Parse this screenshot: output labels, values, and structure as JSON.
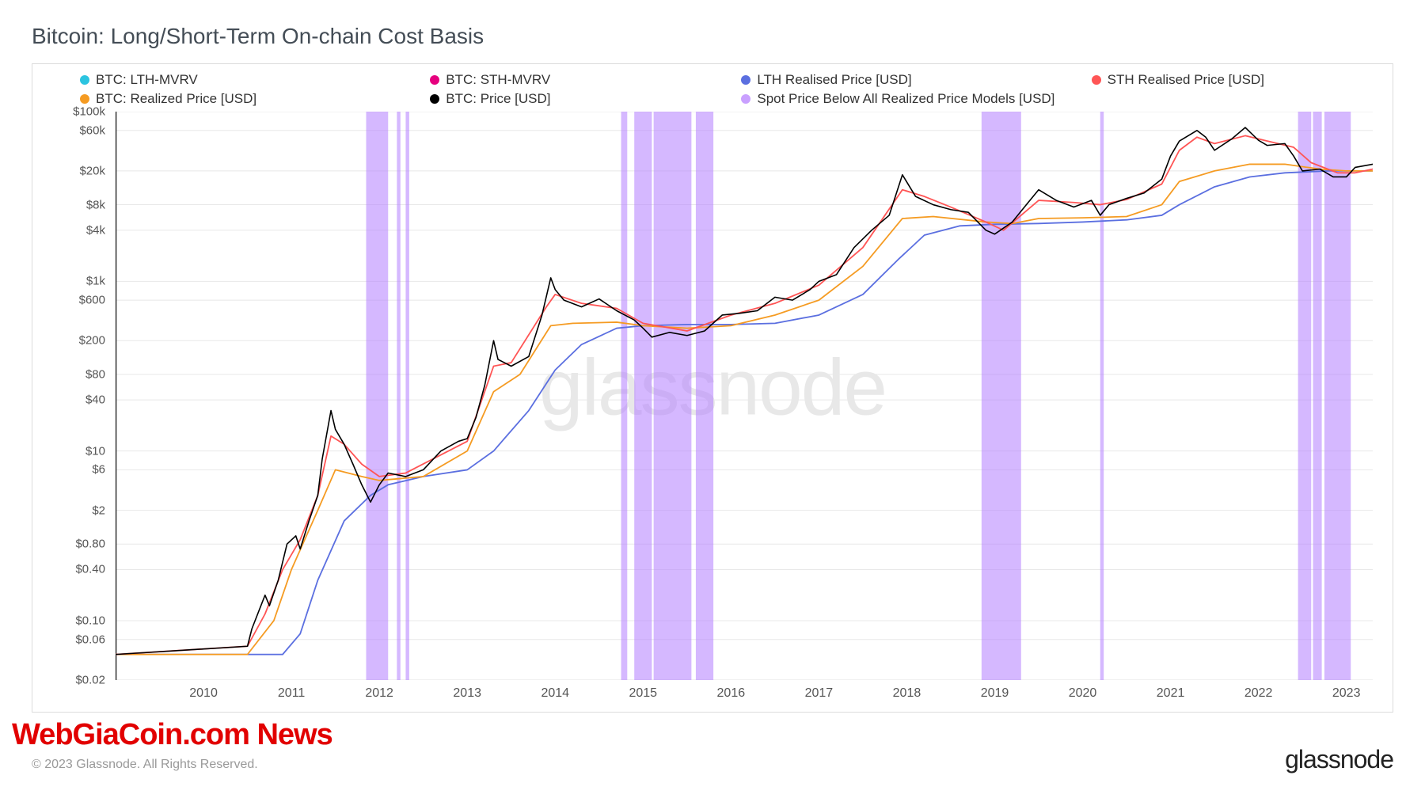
{
  "title": "Bitcoin: Long/Short-Term On-chain Cost Basis",
  "watermark": "glassnode",
  "copyright": "© 2023 Glassnode. All Rights Reserved.",
  "brand": "glassnode",
  "overlay_news": "WebGiaCoin.com News",
  "legend": {
    "items": [
      {
        "label": "BTC: LTH-MVRV",
        "color": "#2bc4e0"
      },
      {
        "label": "BTC: STH-MVRV",
        "color": "#e6007e"
      },
      {
        "label": "LTH Realised Price [USD]",
        "color": "#5b6fe0"
      },
      {
        "label": "STH Realised Price [USD]",
        "color": "#ff5555"
      },
      {
        "label": "BTC: Realized Price [USD]",
        "color": "#f59b22"
      },
      {
        "label": "BTC: Price [USD]",
        "color": "#000000"
      },
      {
        "label": "Spot Price Below All Realized Price Models [USD]",
        "color": "#c9a0ff"
      }
    ]
  },
  "chart": {
    "type": "line",
    "background_color": "#ffffff",
    "grid_color": "#e8e8e8",
    "y_scale": "log",
    "ylim_log10": [
      -1.7,
      5.0
    ],
    "y_ticks": [
      {
        "v": 0.02,
        "label": "$0.02"
      },
      {
        "v": 0.06,
        "label": "$0.06"
      },
      {
        "v": 0.1,
        "label": "$0.10"
      },
      {
        "v": 0.4,
        "label": "$0.40"
      },
      {
        "v": 0.8,
        "label": "$0.80"
      },
      {
        "v": 2,
        "label": "$2"
      },
      {
        "v": 6,
        "label": "$6"
      },
      {
        "v": 10,
        "label": "$10"
      },
      {
        "v": 40,
        "label": "$40"
      },
      {
        "v": 80,
        "label": "$80"
      },
      {
        "v": 200,
        "label": "$200"
      },
      {
        "v": 600,
        "label": "$600"
      },
      {
        "v": 1000,
        "label": "$1k"
      },
      {
        "v": 4000,
        "label": "$4k"
      },
      {
        "v": 8000,
        "label": "$8k"
      },
      {
        "v": 20000,
        "label": "$20k"
      },
      {
        "v": 60000,
        "label": "$60k"
      },
      {
        "v": 100000,
        "label": "$100k"
      }
    ],
    "xlim": [
      2009.0,
      2023.3
    ],
    "x_ticks": [
      2010,
      2011,
      2012,
      2013,
      2014,
      2015,
      2016,
      2017,
      2018,
      2019,
      2020,
      2021,
      2022,
      2023
    ],
    "highlight_color": "#b37dff",
    "highlight_opacity": 0.55,
    "highlight_regions": [
      [
        2011.85,
        2012.1
      ],
      [
        2012.2,
        2012.24
      ],
      [
        2012.3,
        2012.34
      ],
      [
        2014.75,
        2014.82
      ],
      [
        2014.9,
        2015.1
      ],
      [
        2015.12,
        2015.55
      ],
      [
        2015.6,
        2015.8
      ],
      [
        2018.85,
        2019.3
      ],
      [
        2020.2,
        2020.24
      ],
      [
        2022.45,
        2022.6
      ],
      [
        2022.62,
        2022.72
      ],
      [
        2022.75,
        2023.05
      ]
    ],
    "series": [
      {
        "name": "BTC: Price [USD]",
        "color": "#000000",
        "width": 1.6,
        "points": [
          [
            2009.0,
            0.04
          ],
          [
            2010.5,
            0.05
          ],
          [
            2010.55,
            0.08
          ],
          [
            2010.7,
            0.2
          ],
          [
            2010.75,
            0.15
          ],
          [
            2010.85,
            0.3
          ],
          [
            2010.95,
            0.8
          ],
          [
            2011.05,
            1.0
          ],
          [
            2011.1,
            0.7
          ],
          [
            2011.2,
            1.5
          ],
          [
            2011.3,
            3
          ],
          [
            2011.35,
            8
          ],
          [
            2011.45,
            30
          ],
          [
            2011.5,
            18
          ],
          [
            2011.6,
            12
          ],
          [
            2011.7,
            7
          ],
          [
            2011.8,
            4
          ],
          [
            2011.9,
            2.5
          ],
          [
            2012.0,
            4
          ],
          [
            2012.1,
            5.5
          ],
          [
            2012.3,
            5
          ],
          [
            2012.5,
            6
          ],
          [
            2012.7,
            10
          ],
          [
            2012.9,
            13
          ],
          [
            2013.0,
            14
          ],
          [
            2013.1,
            25
          ],
          [
            2013.2,
            60
          ],
          [
            2013.3,
            200
          ],
          [
            2013.35,
            120
          ],
          [
            2013.5,
            100
          ],
          [
            2013.7,
            130
          ],
          [
            2013.85,
            400
          ],
          [
            2013.95,
            1100
          ],
          [
            2014.0,
            800
          ],
          [
            2014.1,
            600
          ],
          [
            2014.3,
            500
          ],
          [
            2014.5,
            620
          ],
          [
            2014.7,
            450
          ],
          [
            2014.9,
            350
          ],
          [
            2015.0,
            280
          ],
          [
            2015.1,
            220
          ],
          [
            2015.3,
            250
          ],
          [
            2015.5,
            230
          ],
          [
            2015.7,
            260
          ],
          [
            2015.9,
            400
          ],
          [
            2016.1,
            420
          ],
          [
            2016.3,
            450
          ],
          [
            2016.5,
            650
          ],
          [
            2016.7,
            600
          ],
          [
            2016.9,
            800
          ],
          [
            2017.0,
            1000
          ],
          [
            2017.2,
            1200
          ],
          [
            2017.4,
            2500
          ],
          [
            2017.6,
            4000
          ],
          [
            2017.8,
            6000
          ],
          [
            2017.95,
            18000
          ],
          [
            2018.1,
            10000
          ],
          [
            2018.3,
            8000
          ],
          [
            2018.5,
            7000
          ],
          [
            2018.7,
            6500
          ],
          [
            2018.9,
            4000
          ],
          [
            2019.0,
            3600
          ],
          [
            2019.2,
            5000
          ],
          [
            2019.4,
            9000
          ],
          [
            2019.5,
            12000
          ],
          [
            2019.7,
            9000
          ],
          [
            2019.9,
            7500
          ],
          [
            2020.1,
            9000
          ],
          [
            2020.2,
            6000
          ],
          [
            2020.3,
            8000
          ],
          [
            2020.5,
            9500
          ],
          [
            2020.7,
            11000
          ],
          [
            2020.9,
            16000
          ],
          [
            2021.0,
            30000
          ],
          [
            2021.1,
            45000
          ],
          [
            2021.3,
            60000
          ],
          [
            2021.4,
            50000
          ],
          [
            2021.5,
            35000
          ],
          [
            2021.7,
            48000
          ],
          [
            2021.85,
            65000
          ],
          [
            2022.0,
            46000
          ],
          [
            2022.1,
            40000
          ],
          [
            2022.3,
            42000
          ],
          [
            2022.4,
            30000
          ],
          [
            2022.5,
            20000
          ],
          [
            2022.7,
            21000
          ],
          [
            2022.85,
            17000
          ],
          [
            2023.0,
            17000
          ],
          [
            2023.1,
            22000
          ],
          [
            2023.3,
            24000
          ]
        ]
      },
      {
        "name": "STH Realised Price [USD]",
        "color": "#ff5555",
        "width": 1.8,
        "points": [
          [
            2009.0,
            0.04
          ],
          [
            2010.5,
            0.05
          ],
          [
            2010.7,
            0.12
          ],
          [
            2010.9,
            0.4
          ],
          [
            2011.1,
            0.9
          ],
          [
            2011.3,
            3
          ],
          [
            2011.45,
            15
          ],
          [
            2011.6,
            12
          ],
          [
            2011.8,
            7
          ],
          [
            2012.0,
            5
          ],
          [
            2012.3,
            5.5
          ],
          [
            2012.7,
            9
          ],
          [
            2013.0,
            13
          ],
          [
            2013.3,
            100
          ],
          [
            2013.5,
            110
          ],
          [
            2013.9,
            500
          ],
          [
            2014.0,
            700
          ],
          [
            2014.3,
            550
          ],
          [
            2014.7,
            480
          ],
          [
            2015.0,
            320
          ],
          [
            2015.5,
            260
          ],
          [
            2016.0,
            400
          ],
          [
            2016.5,
            550
          ],
          [
            2017.0,
            900
          ],
          [
            2017.5,
            2500
          ],
          [
            2017.95,
            12000
          ],
          [
            2018.2,
            10000
          ],
          [
            2018.5,
            7500
          ],
          [
            2018.9,
            5000
          ],
          [
            2019.1,
            4000
          ],
          [
            2019.5,
            9000
          ],
          [
            2019.9,
            8500
          ],
          [
            2020.2,
            8000
          ],
          [
            2020.5,
            9200
          ],
          [
            2020.9,
            14000
          ],
          [
            2021.1,
            35000
          ],
          [
            2021.3,
            50000
          ],
          [
            2021.5,
            42000
          ],
          [
            2021.85,
            52000
          ],
          [
            2022.1,
            45000
          ],
          [
            2022.4,
            38000
          ],
          [
            2022.6,
            25000
          ],
          [
            2022.9,
            19000
          ],
          [
            2023.1,
            19000
          ],
          [
            2023.3,
            21000
          ]
        ]
      },
      {
        "name": "BTC: Realized Price [USD]",
        "color": "#f59b22",
        "width": 1.8,
        "points": [
          [
            2009.0,
            0.04
          ],
          [
            2010.5,
            0.04
          ],
          [
            2010.8,
            0.1
          ],
          [
            2011.0,
            0.4
          ],
          [
            2011.3,
            2
          ],
          [
            2011.5,
            6
          ],
          [
            2011.8,
            5
          ],
          [
            2012.0,
            4.5
          ],
          [
            2012.5,
            5
          ],
          [
            2013.0,
            10
          ],
          [
            2013.3,
            50
          ],
          [
            2013.6,
            80
          ],
          [
            2013.95,
            300
          ],
          [
            2014.2,
            320
          ],
          [
            2014.7,
            330
          ],
          [
            2015.0,
            300
          ],
          [
            2015.5,
            280
          ],
          [
            2016.0,
            300
          ],
          [
            2016.5,
            400
          ],
          [
            2017.0,
            600
          ],
          [
            2017.5,
            1500
          ],
          [
            2017.95,
            5500
          ],
          [
            2018.3,
            5800
          ],
          [
            2018.9,
            5000
          ],
          [
            2019.2,
            4800
          ],
          [
            2019.5,
            5500
          ],
          [
            2020.0,
            5600
          ],
          [
            2020.5,
            5800
          ],
          [
            2020.9,
            8000
          ],
          [
            2021.1,
            15000
          ],
          [
            2021.5,
            20000
          ],
          [
            2021.9,
            24000
          ],
          [
            2022.3,
            24000
          ],
          [
            2022.7,
            21000
          ],
          [
            2023.0,
            20000
          ],
          [
            2023.3,
            20000
          ]
        ]
      },
      {
        "name": "LTH Realised Price [USD]",
        "color": "#5b6fe0",
        "width": 1.8,
        "points": [
          [
            2009.0,
            0.04
          ],
          [
            2010.9,
            0.04
          ],
          [
            2011.1,
            0.07
          ],
          [
            2011.3,
            0.3
          ],
          [
            2011.6,
            1.5
          ],
          [
            2011.9,
            3
          ],
          [
            2012.1,
            4
          ],
          [
            2012.5,
            5
          ],
          [
            2013.0,
            6
          ],
          [
            2013.3,
            10
          ],
          [
            2013.7,
            30
          ],
          [
            2014.0,
            90
          ],
          [
            2014.3,
            180
          ],
          [
            2014.7,
            280
          ],
          [
            2015.0,
            300
          ],
          [
            2015.5,
            310
          ],
          [
            2016.0,
            310
          ],
          [
            2016.5,
            320
          ],
          [
            2017.0,
            400
          ],
          [
            2017.5,
            700
          ],
          [
            2017.9,
            1800
          ],
          [
            2018.2,
            3500
          ],
          [
            2018.6,
            4500
          ],
          [
            2019.0,
            4700
          ],
          [
            2019.5,
            4800
          ],
          [
            2020.0,
            5000
          ],
          [
            2020.5,
            5300
          ],
          [
            2020.9,
            6000
          ],
          [
            2021.1,
            8000
          ],
          [
            2021.5,
            13000
          ],
          [
            2021.9,
            17000
          ],
          [
            2022.3,
            19000
          ],
          [
            2022.8,
            20000
          ],
          [
            2023.3,
            20000
          ]
        ]
      }
    ]
  }
}
